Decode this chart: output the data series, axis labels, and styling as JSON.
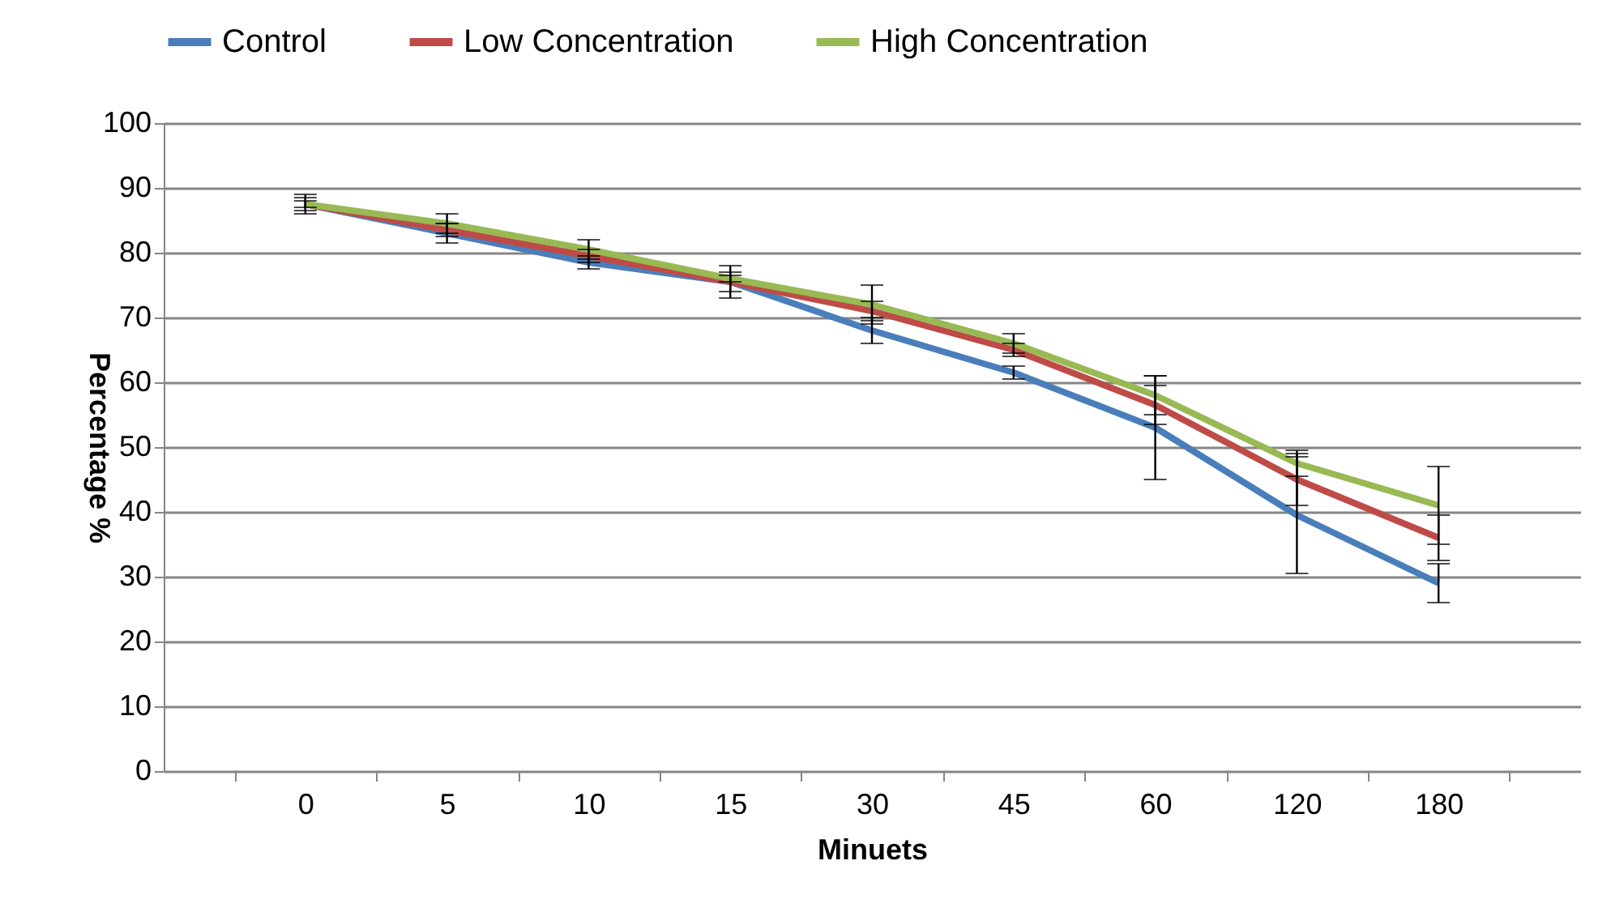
{
  "chart_data": {
    "type": "line",
    "xlabel": "Minuets",
    "ylabel": "Percentage %",
    "categories": [
      "0",
      "5",
      "10",
      "15",
      "30",
      "45",
      "60",
      "120",
      "180"
    ],
    "series": [
      {
        "name": "Control",
        "color": "#4a7ebb",
        "values": [
          87.5,
          83,
          78.5,
          75.5,
          68,
          61.5,
          53,
          39.5,
          29
        ],
        "errors": [
          1.5,
          1.5,
          1,
          2.5,
          2,
          1,
          8,
          9,
          3
        ]
      },
      {
        "name": "Low Concentration",
        "color": "#be4b48",
        "values": [
          87.5,
          83.5,
          79.5,
          75.5,
          71,
          65,
          56.5,
          45,
          36
        ],
        "errors": [
          1,
          1,
          1,
          1.5,
          1.5,
          1,
          3,
          4,
          3.5
        ]
      },
      {
        "name": "High Concentration",
        "color": "#98b954",
        "values": [
          87.5,
          84.5,
          80.5,
          76,
          72,
          66,
          58,
          47.5,
          41
        ],
        "errors": [
          0.5,
          1.5,
          1.5,
          0.5,
          3,
          1.5,
          3,
          2,
          6
        ]
      }
    ],
    "ylim": [
      0,
      100
    ],
    "yticks": [
      0,
      10,
      20,
      30,
      40,
      50,
      60,
      70,
      80,
      90,
      100
    ],
    "grid": "y",
    "legend": "top",
    "marker": "none",
    "line_style": "solid"
  }
}
